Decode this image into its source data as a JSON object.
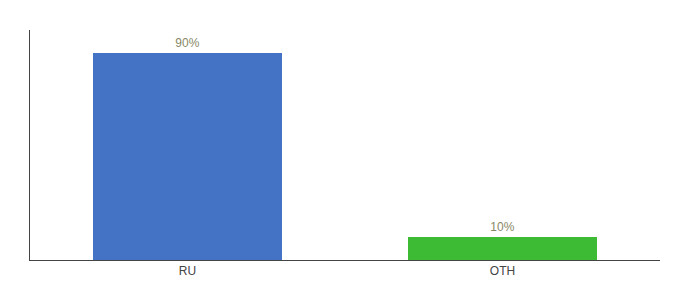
{
  "chart_data": {
    "type": "bar",
    "categories": [
      "RU",
      "OTH"
    ],
    "values": [
      90,
      10
    ],
    "value_labels": [
      "90%",
      "10%"
    ],
    "data_labels": true,
    "colors": [
      "#4472c4",
      "#3dbb35"
    ],
    "ylim": [
      0,
      100
    ],
    "grid": false,
    "tick_labels": "x"
  }
}
